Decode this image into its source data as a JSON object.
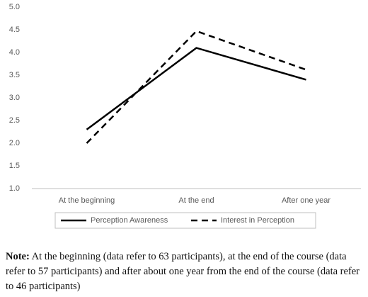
{
  "chart_data": {
    "type": "line",
    "categories": [
      "At the beginning",
      "At the end",
      "After one year"
    ],
    "series": [
      {
        "name": "Perception Awareness",
        "color": "#000000",
        "dashed": false,
        "values": [
          2.3,
          4.1,
          3.4
        ]
      },
      {
        "name": "Interest in Perception",
        "color": "#000000",
        "dashed": true,
        "values": [
          2.0,
          4.47,
          3.62
        ]
      }
    ],
    "ylim": [
      1,
      5
    ],
    "yticks": [
      {
        "value": 1,
        "label": "1.0"
      },
      {
        "value": 1.5,
        "label": "1.5"
      },
      {
        "value": 2,
        "label": "2.0"
      },
      {
        "value": 2.5,
        "label": "2.5"
      },
      {
        "value": 3,
        "label": "3.0"
      },
      {
        "value": 3.5,
        "label": "3.5"
      },
      {
        "value": 4,
        "label": "4.0"
      },
      {
        "value": 4.5,
        "label": "4.5"
      },
      {
        "value": 5,
        "label": "5.0"
      }
    ],
    "grid": false,
    "legend": "bottom"
  },
  "note": {
    "label": "Note:",
    "text": "At the beginning (data refer to 63 participants), at the end of the course (data refer to 57 participants) and after about one year from the end of the course (data refer to 46 participants)"
  }
}
